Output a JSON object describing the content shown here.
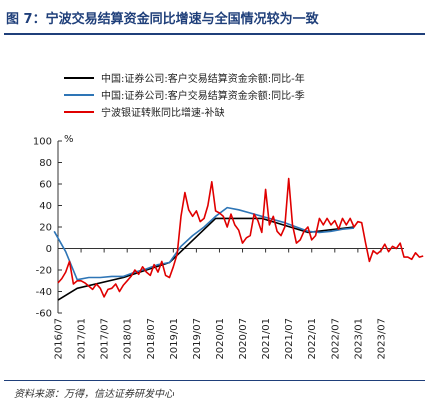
{
  "figure": {
    "title": "图 7：宁波交易结算资金同比增速与全国情况较为一致",
    "source": "资料来源：万得，信达证券研发中心"
  },
  "chart_data": {
    "type": "line",
    "ylabel": "%",
    "ylim": [
      -60,
      100
    ],
    "yticks": [
      -60,
      -40,
      -20,
      0,
      20,
      40,
      60,
      80,
      100
    ],
    "xlim": [
      "2016-07",
      "2024-01"
    ],
    "xticks": [
      "2016/07",
      "2017/01",
      "2017/07",
      "2018/01",
      "2018/07",
      "2019/01",
      "2019/07",
      "2020/01",
      "2020/07",
      "2021/01",
      "2021/07",
      "2022/01",
      "2022/07",
      "2023/01",
      "2023/07"
    ],
    "legend_position": "top-left",
    "grid": false,
    "series": [
      {
        "name": "中国:证券公司:客户交易结算资金余额:同比-年",
        "color": "#000000",
        "points": [
          [
            "2016-07",
            -48
          ],
          [
            "2016-12",
            -37
          ],
          [
            "2017-12",
            -27
          ],
          [
            "2018-12",
            -13
          ],
          [
            "2019-12",
            28
          ],
          [
            "2020-12",
            28
          ],
          [
            "2021-12",
            15
          ],
          [
            "2022-12",
            20
          ]
        ]
      },
      {
        "name": "中国:证券公司:客户交易结算资金余额:同比-季",
        "color": "#2e75b6",
        "points": [
          [
            "2016-06",
            16
          ],
          [
            "2016-09",
            -3
          ],
          [
            "2016-12",
            -29
          ],
          [
            "2017-03",
            -27
          ],
          [
            "2017-06",
            -27
          ],
          [
            "2017-09",
            -26
          ],
          [
            "2017-12",
            -26
          ],
          [
            "2018-03",
            -22
          ],
          [
            "2018-06",
            -19
          ],
          [
            "2018-09",
            -15
          ],
          [
            "2018-12",
            -13
          ],
          [
            "2019-03",
            2
          ],
          [
            "2019-06",
            12
          ],
          [
            "2019-09",
            20
          ],
          [
            "2019-12",
            30
          ],
          [
            "2020-03",
            38
          ],
          [
            "2020-06",
            36
          ],
          [
            "2020-09",
            33
          ],
          [
            "2020-12",
            30
          ],
          [
            "2021-03",
            27
          ],
          [
            "2021-06",
            24
          ],
          [
            "2021-09",
            20
          ],
          [
            "2021-12",
            16
          ],
          [
            "2022-03",
            15
          ],
          [
            "2022-06",
            16
          ],
          [
            "2022-09",
            18
          ],
          [
            "2022-12",
            19
          ]
        ]
      },
      {
        "name": "宁波银证转账同比增速-补缺",
        "color": "#e00000",
        "points": [
          [
            "2016-07",
            -32
          ],
          [
            "2016-08",
            -28
          ],
          [
            "2016-09",
            -22
          ],
          [
            "2016-10",
            -12
          ],
          [
            "2016-11",
            -33
          ],
          [
            "2016-12",
            -30
          ],
          [
            "2017-01",
            -30
          ],
          [
            "2017-02",
            -32
          ],
          [
            "2017-03",
            -35
          ],
          [
            "2017-04",
            -38
          ],
          [
            "2017-05",
            -33
          ],
          [
            "2017-06",
            -37
          ],
          [
            "2017-07",
            -45
          ],
          [
            "2017-08",
            -38
          ],
          [
            "2017-09",
            -37
          ],
          [
            "2017-10",
            -33
          ],
          [
            "2017-11",
            -40
          ],
          [
            "2017-12",
            -34
          ],
          [
            "2018-01",
            -30
          ],
          [
            "2018-02",
            -26
          ],
          [
            "2018-03",
            -20
          ],
          [
            "2018-04",
            -24
          ],
          [
            "2018-05",
            -17
          ],
          [
            "2018-06",
            -22
          ],
          [
            "2018-07",
            -25
          ],
          [
            "2018-08",
            -15
          ],
          [
            "2018-09",
            -22
          ],
          [
            "2018-10",
            -12
          ],
          [
            "2018-11",
            -25
          ],
          [
            "2018-12",
            -27
          ],
          [
            "2019-01",
            -17
          ],
          [
            "2019-02",
            -5
          ],
          [
            "2019-03",
            30
          ],
          [
            "2019-04",
            52
          ],
          [
            "2019-05",
            36
          ],
          [
            "2019-06",
            30
          ],
          [
            "2019-07",
            35
          ],
          [
            "2019-08",
            25
          ],
          [
            "2019-09",
            28
          ],
          [
            "2019-10",
            40
          ],
          [
            "2019-11",
            62
          ],
          [
            "2019-12",
            35
          ],
          [
            "2020-01",
            33
          ],
          [
            "2020-02",
            30
          ],
          [
            "2020-03",
            20
          ],
          [
            "2020-04",
            32
          ],
          [
            "2020-05",
            22
          ],
          [
            "2020-06",
            17
          ],
          [
            "2020-07",
            5
          ],
          [
            "2020-08",
            10
          ],
          [
            "2020-09",
            12
          ],
          [
            "2020-10",
            32
          ],
          [
            "2020-11",
            26
          ],
          [
            "2020-12",
            15
          ],
          [
            "2021-01",
            55
          ],
          [
            "2021-02",
            22
          ],
          [
            "2021-03",
            30
          ],
          [
            "2021-04",
            16
          ],
          [
            "2021-05",
            12
          ],
          [
            "2021-06",
            20
          ],
          [
            "2021-07",
            65
          ],
          [
            "2021-08",
            22
          ],
          [
            "2021-09",
            5
          ],
          [
            "2021-10",
            8
          ],
          [
            "2021-11",
            16
          ],
          [
            "2021-12",
            20
          ],
          [
            "2022-01",
            8
          ],
          [
            "2022-02",
            12
          ],
          [
            "2022-03",
            28
          ],
          [
            "2022-04",
            22
          ],
          [
            "2022-05",
            28
          ],
          [
            "2022-06",
            22
          ],
          [
            "2022-07",
            26
          ],
          [
            "2022-08",
            18
          ],
          [
            "2022-09",
            28
          ],
          [
            "2022-10",
            22
          ],
          [
            "2022-11",
            28
          ],
          [
            "2022-12",
            20
          ],
          [
            "2023-01",
            25
          ],
          [
            "2023-02",
            24
          ],
          [
            "2023-03",
            5
          ],
          [
            "2023-04",
            -12
          ],
          [
            "2023-05",
            -2
          ],
          [
            "2023-06",
            -5
          ],
          [
            "2023-07",
            -2
          ],
          [
            "2023-08",
            4
          ],
          [
            "2023-09",
            -3
          ],
          [
            "2023-10",
            2
          ],
          [
            "2023-11",
            0
          ],
          [
            "2023-12",
            5
          ],
          [
            "2024-01",
            -8
          ],
          [
            "2024-02",
            -8
          ],
          [
            "2024-03",
            -10
          ],
          [
            "2024-04",
            -4
          ],
          [
            "2024-05",
            -8
          ],
          [
            "2024-06",
            -7
          ]
        ]
      }
    ]
  }
}
